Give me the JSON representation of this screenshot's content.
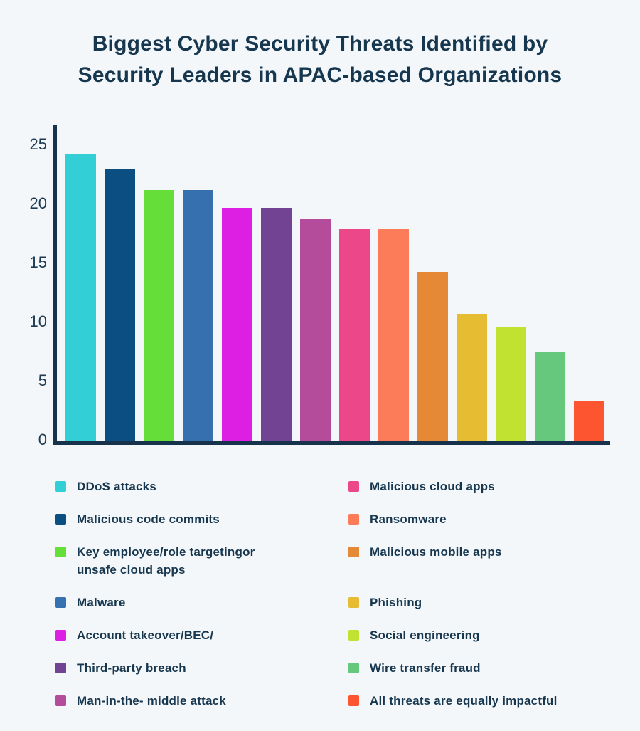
{
  "page": {
    "background_color": "#F3F7FA",
    "text_color": "#17374F",
    "axis_color": "#17334B"
  },
  "title": {
    "line1": "Biggest Cyber Security Threats Identified by",
    "line2": "Security Leaders in APAC-based Organizations"
  },
  "chart_data": {
    "type": "bar",
    "title": "Biggest Cyber Security Threats Identified by Security Leaders in APAC-based Organizations",
    "xlabel": "",
    "ylabel": "",
    "ylim": [
      0,
      26
    ],
    "yticks": [
      0,
      5,
      10,
      15,
      20,
      25
    ],
    "grid": false,
    "legend_position": "bottom, two columns (items 1-7 left, 8-14 right), square swatches matching bar colors",
    "categories": [
      "DDoS attacks",
      "Malicious code commits",
      "Key employee/role targetingor unsafe cloud apps",
      "Malware",
      "Account takeover/BEC/",
      "Third-party breach",
      "Man-in-the- middle attack",
      "Malicious cloud apps",
      "Ransomware",
      "Malicious mobile apps",
      "Phishing",
      "Social engineering",
      "Wire transfer fraud",
      "All threats are equally impactful"
    ],
    "values": [
      24.2,
      23.0,
      21.2,
      21.2,
      19.7,
      19.7,
      18.8,
      17.9,
      17.9,
      14.3,
      10.7,
      9.6,
      7.5,
      3.3
    ],
    "colors": [
      "#33CFD6",
      "#0A4E82",
      "#66DE3A",
      "#3770AE",
      "#DD1FE4",
      "#714392",
      "#B44B9B",
      "#EC4788",
      "#FC7B58",
      "#E68937",
      "#E6BC33",
      "#C2E232",
      "#66C87D",
      "#FC5530"
    ]
  }
}
